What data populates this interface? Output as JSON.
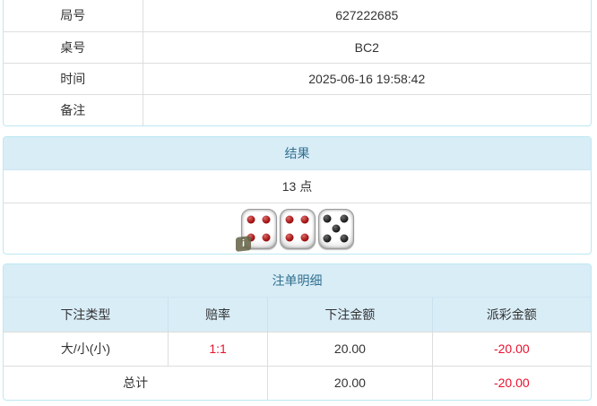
{
  "info_table": {
    "rows": [
      {
        "label": "局号",
        "value": "627222685"
      },
      {
        "label": "桌号",
        "value": "BC2"
      },
      {
        "label": "时间",
        "value": "2025-06-16 19:58:42"
      },
      {
        "label": "备注",
        "value": ""
      }
    ]
  },
  "result_panel": {
    "title": "结果",
    "points": "13 点",
    "dice": [
      {
        "value": 4,
        "pip_color": "red",
        "info_badge": true
      },
      {
        "value": 4,
        "pip_color": "red",
        "info_badge": false
      },
      {
        "value": 5,
        "pip_color": "black",
        "info_badge": false
      }
    ],
    "info_badge_label": "i"
  },
  "bets_panel": {
    "title": "注单明细",
    "columns": [
      "下注类型",
      "赔率",
      "下注金额",
      "派彩金额"
    ],
    "rows": [
      {
        "bet_type": "大/小(小)",
        "odds": "1:1",
        "bet_amount": "20.00",
        "payout": "-20.00"
      }
    ],
    "total": {
      "label": "总计",
      "bet_amount": "20.00",
      "payout": "-20.00"
    }
  },
  "colors": {
    "panel_border": "#bce8f1",
    "panel_heading_bg": "#d9edf7",
    "panel_heading_text": "#31708f",
    "table_border": "#dddddd",
    "body_text": "#333333",
    "negative_red": "#e8112d",
    "dice_pip_red": "#a51212",
    "dice_pip_black": "#1c1c1c"
  }
}
